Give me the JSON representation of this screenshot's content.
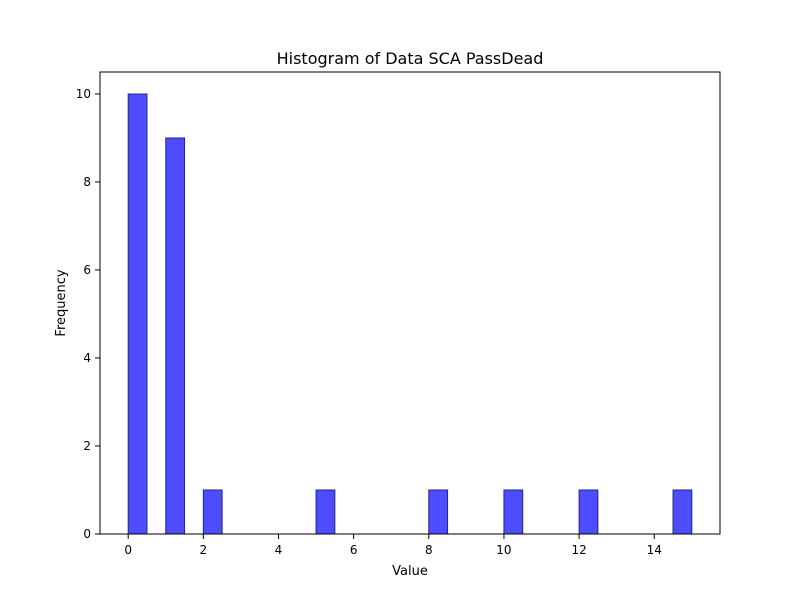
{
  "chart_data": {
    "type": "bar",
    "title": "Histogram of Data SCA PassDead",
    "xlabel": "Value",
    "ylabel": "Frequency",
    "xlim": [
      -0.75,
      15.75
    ],
    "ylim": [
      0,
      10.5
    ],
    "xticks": [
      0,
      2,
      4,
      6,
      8,
      10,
      12,
      14
    ],
    "yticks": [
      0,
      2,
      4,
      6,
      8,
      10
    ],
    "bin_edges": [
      0,
      0.5,
      1,
      1.5,
      2,
      2.5,
      3,
      3.5,
      4,
      4.5,
      5,
      5.5,
      6,
      6.5,
      7,
      7.5,
      8,
      8.5,
      9,
      9.5,
      10,
      10.5,
      11,
      11.5,
      12,
      12.5,
      13,
      13.5,
      14,
      14.5,
      15
    ],
    "bins": [
      {
        "x0": 0,
        "x1": 0.5,
        "count": 10
      },
      {
        "x0": 1,
        "x1": 1.5,
        "count": 9
      },
      {
        "x0": 2,
        "x1": 2.5,
        "count": 1
      },
      {
        "x0": 5,
        "x1": 5.5,
        "count": 1
      },
      {
        "x0": 8,
        "x1": 8.5,
        "count": 1
      },
      {
        "x0": 10,
        "x1": 10.5,
        "count": 1
      },
      {
        "x0": 12,
        "x1": 12.5,
        "count": 1
      },
      {
        "x0": 14.5,
        "x1": 15,
        "count": 1
      }
    ],
    "grid": false,
    "bar_fill": "#4d4dff",
    "bar_edge": "#262680"
  }
}
